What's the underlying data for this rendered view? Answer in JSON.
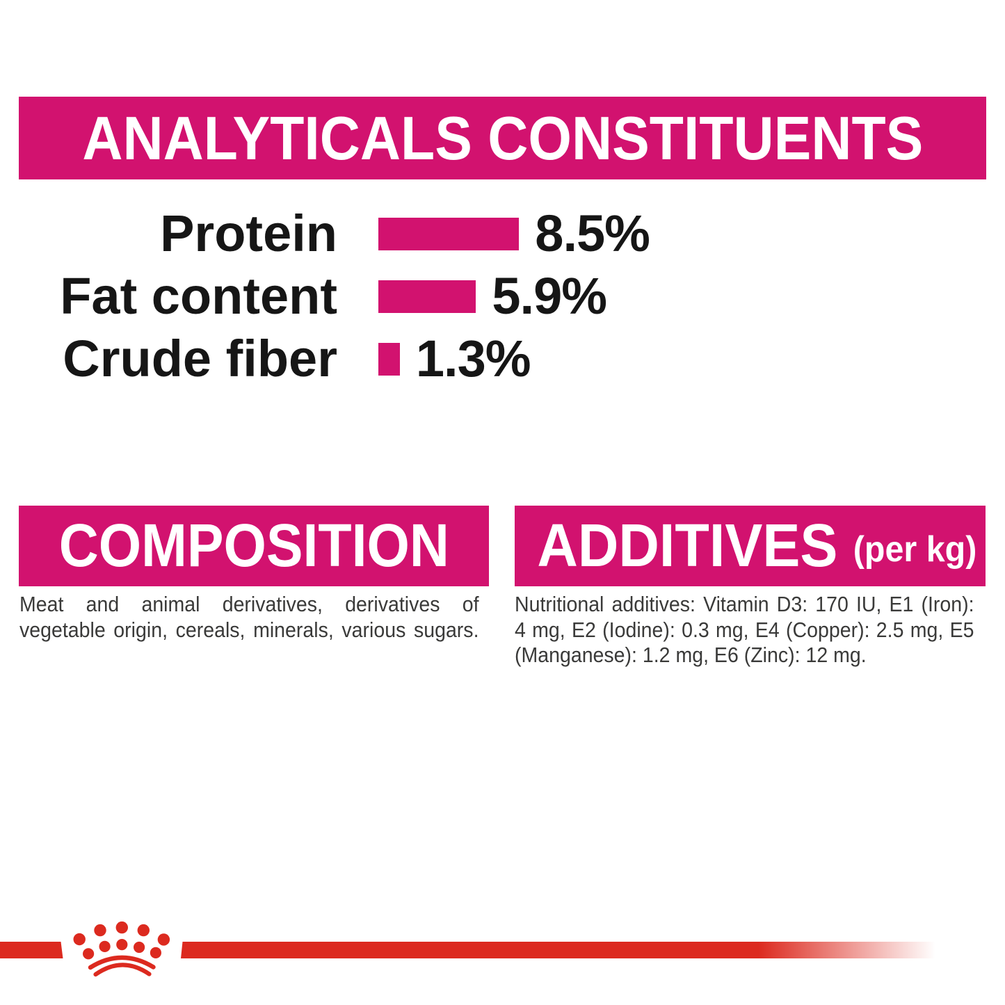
{
  "colors": {
    "magenta": "#d2126f",
    "red": "#dc2a1f",
    "chart_text": "#161616",
    "body_text": "#3a3a39",
    "banner_text": "#ffffff",
    "background": "#ffffff"
  },
  "analyticals": {
    "title": "ANALYTICALS CONSTITUENTS"
  },
  "chart_data": {
    "type": "bar",
    "orientation": "horizontal",
    "title": "ANALYTICALS CONSTITUENTS",
    "categories": [
      "Protein",
      "Fat content",
      "Crude fiber"
    ],
    "values": [
      8.5,
      5.9,
      1.3
    ],
    "unit": "%",
    "value_labels": [
      "8.5%",
      "5.9%",
      "1.3%"
    ],
    "bar_color": "#d2126f",
    "xlabel": "",
    "ylabel": "",
    "grid": false,
    "legend": false
  },
  "composition": {
    "title": "COMPOSITION",
    "fill_last_line": true,
    "lines": [
      "Meat and animal derivatives, derivatives of",
      "vegetable origin, cereals, minerals, various sugars."
    ],
    "text": "Meat and animal derivatives, derivatives of vegetable origin, cereals, minerals, various sugars."
  },
  "additives": {
    "title": "ADDITIVES",
    "suffix": "(per kg)",
    "fill_last_line": false,
    "lines": [
      "Nutritional additives: Vitamin D3: 170 IU, E1 (Iron):",
      "4 mg, E2 (Iodine): 0.3 mg, E4 (Copper): 2.5 mg, E5",
      "(Manganese): 1.2 mg, E6 (Zinc): 12 mg."
    ],
    "text": "Nutritional additives: Vitamin D3: 170 IU, E1 (Iron): 4 mg, E2 (Iodine): 0.3 mg, E4 (Copper): 2.5 mg, E5 (Manganese): 1.2 mg, E6 (Zinc): 12 mg."
  },
  "footer": {
    "brand": "Royal Canin",
    "logo": "royal-canin-crown"
  }
}
